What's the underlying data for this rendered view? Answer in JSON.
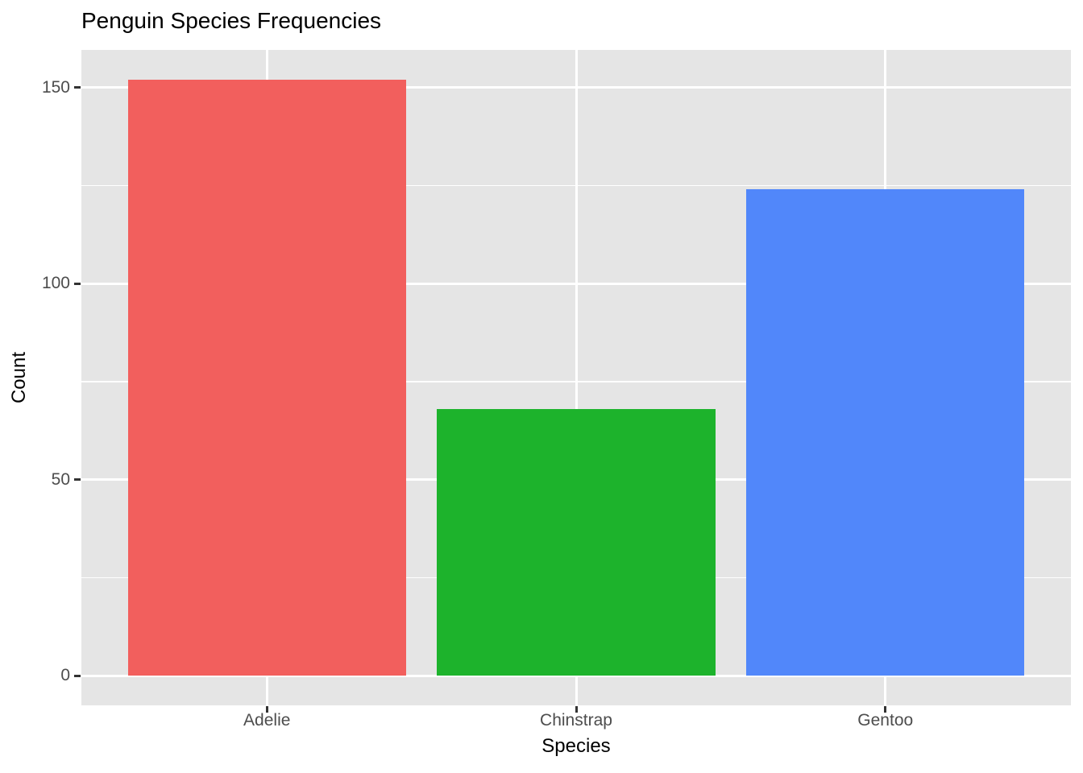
{
  "chart_data": {
    "type": "bar",
    "title": "Penguin Species Frequencies",
    "xlabel": "Species",
    "ylabel": "Count",
    "categories": [
      "Adelie",
      "Chinstrap",
      "Gentoo"
    ],
    "values": [
      152,
      68,
      124
    ],
    "bar_colors": [
      "#F25F5D",
      "#1DB32C",
      "#5187FA"
    ],
    "y_ticks": [
      0,
      50,
      100,
      150
    ],
    "y_tick_labels": [
      "0",
      "50",
      "100",
      "150"
    ],
    "y_minor_gridlines": [
      25,
      75,
      125
    ],
    "ylim": [
      0,
      159.6
    ],
    "bar_width_fraction": 0.9,
    "legend": "none",
    "grid": "white major and minor gridlines on gray panel",
    "panel_background": "#E5E5E5",
    "gridline_color": "#FFFFFF",
    "tick_label_color": "#4D4D4D",
    "tick_mark_color": "#333333",
    "axis_title_color": "#000000"
  }
}
